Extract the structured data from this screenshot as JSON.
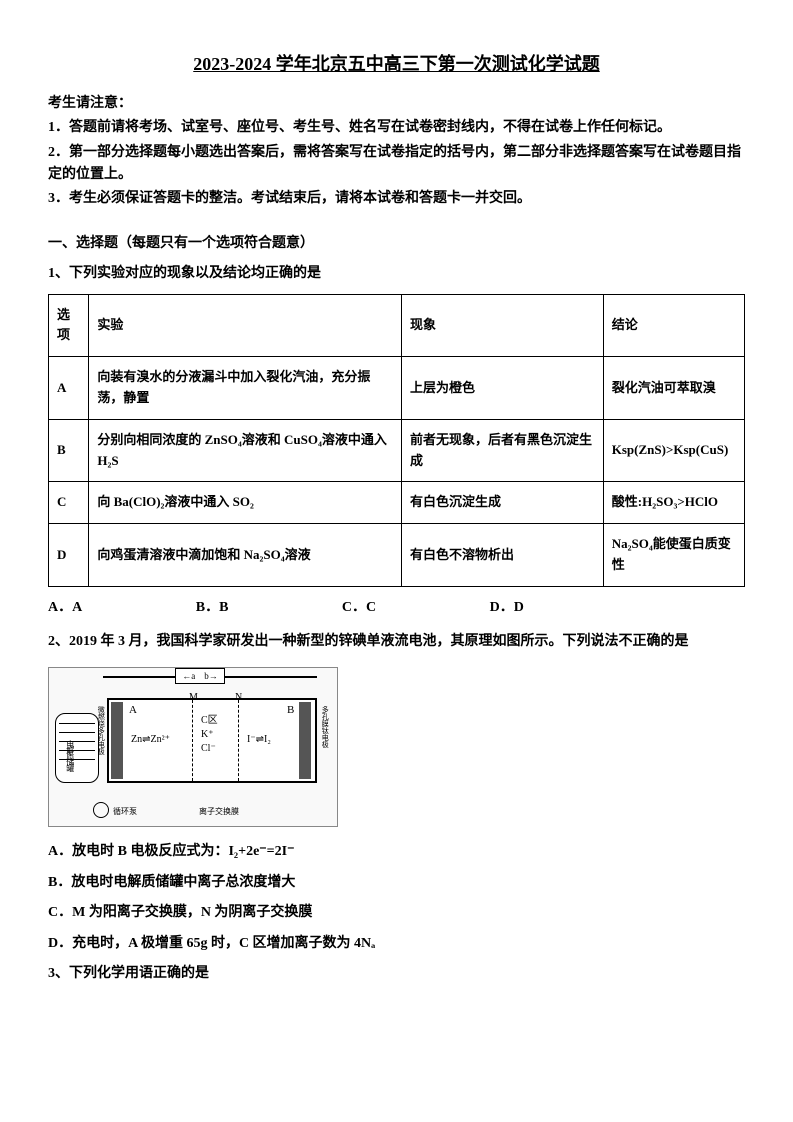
{
  "title": "2023-2024 学年北京五中高三下第一次测试化学试题",
  "notice": {
    "header": "考生请注意：",
    "lines": [
      "1．答题前请将考场、试室号、座位号、考生号、姓名写在试卷密封线内，不得在试卷上作任何标记。",
      "2．第一部分选择题每小题选出答案后，需将答案写在试卷指定的括号内，第二部分非选择题答案写在试卷题目指定的位置上。",
      "3．考生必须保证答题卡的整洁。考试结束后，请将本试卷和答题卡一并交回。"
    ]
  },
  "section1": {
    "header": "一、选择题（每题只有一个选项符合题意）",
    "q1": {
      "stem": "1、下列实验对应的现象以及结论均正确的是",
      "table": {
        "headers": {
          "option": "选项",
          "experiment": "实验",
          "phenomenon": "现象",
          "conclusion": "结论"
        },
        "rows": [
          {
            "option": "A",
            "experiment": "向装有溴水的分液漏斗中加入裂化汽油，充分振荡，静置",
            "phenomenon": "上层为橙色",
            "conclusion": "裂化汽油可萃取溴"
          },
          {
            "option": "B",
            "experiment": "分别向相同浓度的 ZnSO₄溶液和 CuSO₄溶液中通入H₂S",
            "phenomenon": "前者无现象，后者有黑色沉淀生成",
            "conclusion": "Ksp(ZnS)>Ksp(CuS)"
          },
          {
            "option": "C",
            "experiment": "向 Ba(ClO)₂溶液中通入 SO₂",
            "phenomenon": "有白色沉淀生成",
            "conclusion": "酸性:H₂SO₃>HClO"
          },
          {
            "option": "D",
            "experiment": "向鸡蛋清溶液中滴加饱和 Na₂SO₄溶液",
            "phenomenon": "有白色不溶物析出",
            "conclusion": "Na₂SO₄能使蛋白质变性"
          }
        ]
      },
      "options": {
        "a": "A．A",
        "b": "B．B",
        "c": "C．C",
        "d": "D．D"
      }
    },
    "q2": {
      "stem": "2、2019 年 3 月，我国科学家研发出一种新型的锌碘单液流电池，其原理如图所示。下列说法不正确的是",
      "diagram": {
        "switch": "←a　b→",
        "labelM": "M",
        "labelN": "N",
        "labelA": "A",
        "labelB": "B",
        "zn_reaction": "Zn⇌Zn²⁺",
        "c_zone_line1": "C区",
        "c_zone_line2": "K⁺",
        "c_zone_line3": "Cl⁻",
        "iodine_reaction": "I⁻⇌I₂",
        "tank_label": "电解质储罐",
        "left_side": "微燃烧多孔电极",
        "right_side": "多孔膜钛电极",
        "pump_label": "循环泵",
        "ion_label": "离子交换膜"
      },
      "options": {
        "a": "A．放电时 B 电极反应式为：I₂+2e⁻=2I⁻",
        "b": "B．放电时电解质储罐中离子总浓度增大",
        "c": "C．M 为阳离子交换膜，N 为阴离子交换膜",
        "d": "D．充电时，A 极增重 65g 时，C 区增加离子数为 4Nₐ"
      }
    },
    "q3": {
      "stem": "3、下列化学用语正确的是"
    }
  },
  "colors": {
    "text": "#000000",
    "background": "#ffffff",
    "border": "#000000",
    "diagram_bg": "#f9f9f9",
    "electrode_fill": "#555555"
  }
}
